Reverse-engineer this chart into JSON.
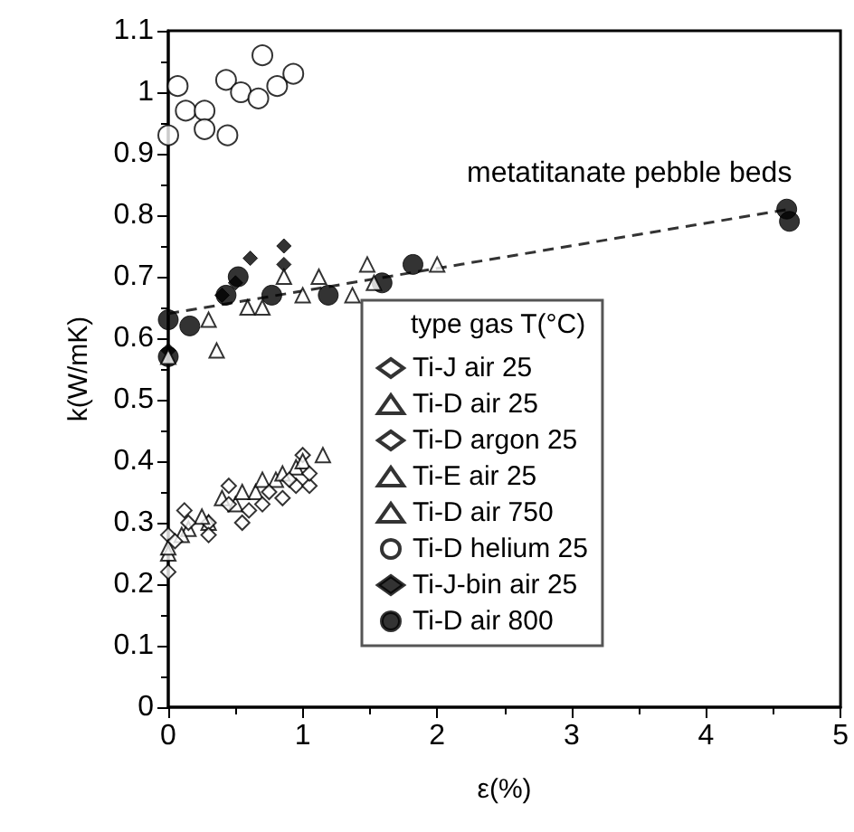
{
  "chart_data": {
    "type": "scatter",
    "xlabel": "ε(%)",
    "ylabel": "k(W/mK)",
    "legend_title": "type gas T(°C)",
    "annotations": [
      "metatitanate pebble beds"
    ],
    "xlim": [
      0,
      5
    ],
    "xticks": [
      0,
      1,
      2,
      3,
      4,
      5
    ],
    "ylim": [
      0,
      1.1
    ],
    "yticks": [
      0,
      0.1,
      0.2,
      0.3,
      0.4,
      0.5,
      0.6,
      0.7,
      0.8,
      0.9,
      1,
      1.1
    ],
    "grid": false,
    "legend": "bottom right",
    "series": [
      {
        "name": "Ti-J air 25",
        "color": "#ffffff",
        "marker": "diamond",
        "x": [
          0,
          0.05,
          0.15,
          0.3,
          0.45,
          0.6,
          0.75,
          0.9,
          1.05
        ],
        "values": [
          0.22,
          0.27,
          0.3,
          0.28,
          0.33,
          0.32,
          0.35,
          0.37,
          0.38
        ]
      },
      {
        "name": "Ti-D air 25",
        "color": "#ffffff",
        "marker": "triangle",
        "x": [
          0,
          0.1,
          0.25,
          0.4,
          0.55,
          0.7,
          0.85,
          1.0
        ],
        "values": [
          0.26,
          0.28,
          0.31,
          0.34,
          0.35,
          0.37,
          0.38,
          0.4
        ]
      },
      {
        "name": "Ti-D argon 25",
        "color": "#ffffff",
        "marker": "diamond",
        "x": [
          0,
          0.12,
          0.3,
          0.45,
          0.55,
          0.7,
          0.85,
          0.95,
          1.0,
          1.05
        ],
        "values": [
          0.28,
          0.32,
          0.3,
          0.36,
          0.3,
          0.33,
          0.34,
          0.36,
          0.41,
          0.36
        ]
      },
      {
        "name": "Ti-E air 25",
        "color": "#ffffff",
        "marker": "triangle",
        "x": [
          0,
          0.15,
          0.3,
          0.5,
          0.65,
          0.8,
          0.95,
          1.15
        ],
        "values": [
          0.25,
          0.29,
          0.3,
          0.33,
          0.35,
          0.37,
          0.39,
          0.41
        ]
      },
      {
        "name": "Ti-D air 750",
        "color": "#ffffff",
        "marker": "triangle",
        "x": [
          0,
          0.3,
          0.36,
          0.59,
          0.7,
          0.86,
          1.0,
          1.12,
          1.37,
          1.48,
          1.53,
          2.0
        ],
        "values": [
          0.57,
          0.63,
          0.58,
          0.65,
          0.65,
          0.7,
          0.67,
          0.7,
          0.67,
          0.72,
          0.69,
          0.72
        ]
      },
      {
        "name": "Ti-D helium 25",
        "color": "#ffffff",
        "marker": "circle",
        "x": [
          0,
          0.07,
          0.13,
          0.27,
          0.27,
          0.44,
          0.43,
          0.54,
          0.67,
          0.7,
          0.81,
          0.93
        ],
        "values": [
          0.93,
          1.01,
          0.97,
          0.97,
          0.94,
          0.93,
          1.02,
          1.0,
          0.99,
          1.06,
          1.01,
          1.03
        ]
      },
      {
        "name": "Ti-J-bin air 25",
        "color": "#000000",
        "marker": "diamond",
        "x": [
          0,
          0.4,
          0.5,
          0.61,
          0.86,
          0.86
        ],
        "values": [
          0.58,
          0.67,
          0.69,
          0.73,
          0.75,
          0.72
        ]
      },
      {
        "name": "Ti-D air 800",
        "color": "#000000",
        "marker": "circle",
        "x": [
          0,
          0,
          0.16,
          0.43,
          0.52,
          0.77,
          1.19,
          1.59,
          1.82,
          4.6,
          4.62
        ],
        "values": [
          0.63,
          0.57,
          0.62,
          0.67,
          0.7,
          0.67,
          0.67,
          0.69,
          0.72,
          0.81,
          0.79
        ]
      },
      {
        "type": "line",
        "color": "#333333",
        "marker": "none",
        "line_style": "dashed",
        "x": [
          0,
          4.62
        ],
        "values": [
          0.64,
          0.81
        ]
      }
    ]
  }
}
